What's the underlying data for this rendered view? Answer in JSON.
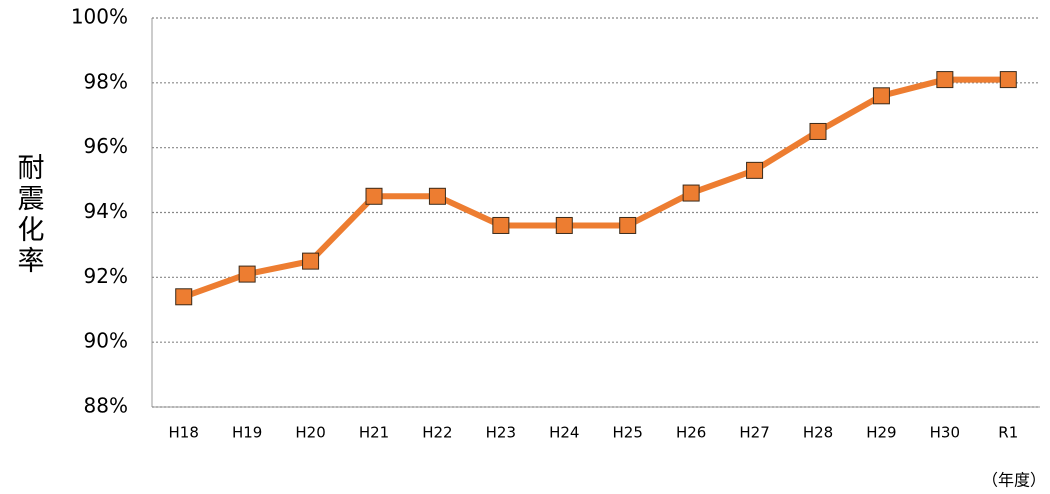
{
  "chart_data": {
    "type": "line",
    "y_label": "耐震化率",
    "x_label": "（年度）",
    "categories": [
      "H18",
      "H19",
      "H20",
      "H21",
      "H22",
      "H23",
      "H24",
      "H25",
      "H26",
      "H27",
      "H28",
      "H29",
      "H30",
      "R1"
    ],
    "series": [
      {
        "color": "#ed7d31",
        "values": [
          91.4,
          92.1,
          92.5,
          94.5,
          94.5,
          93.6,
          93.6,
          93.6,
          94.6,
          95.3,
          96.5,
          97.6,
          98.1,
          98.1
        ]
      }
    ],
    "ylim": [
      88,
      100
    ],
    "yticks": [
      {
        "value": 88,
        "label": "88%"
      },
      {
        "value": 90,
        "label": "90%"
      },
      {
        "value": 92,
        "label": "92%"
      },
      {
        "value": 94,
        "label": "94%"
      },
      {
        "value": 96,
        "label": "96%"
      },
      {
        "value": 98,
        "label": "98%"
      },
      {
        "value": 100,
        "label": "100%"
      }
    ],
    "grid": true
  }
}
